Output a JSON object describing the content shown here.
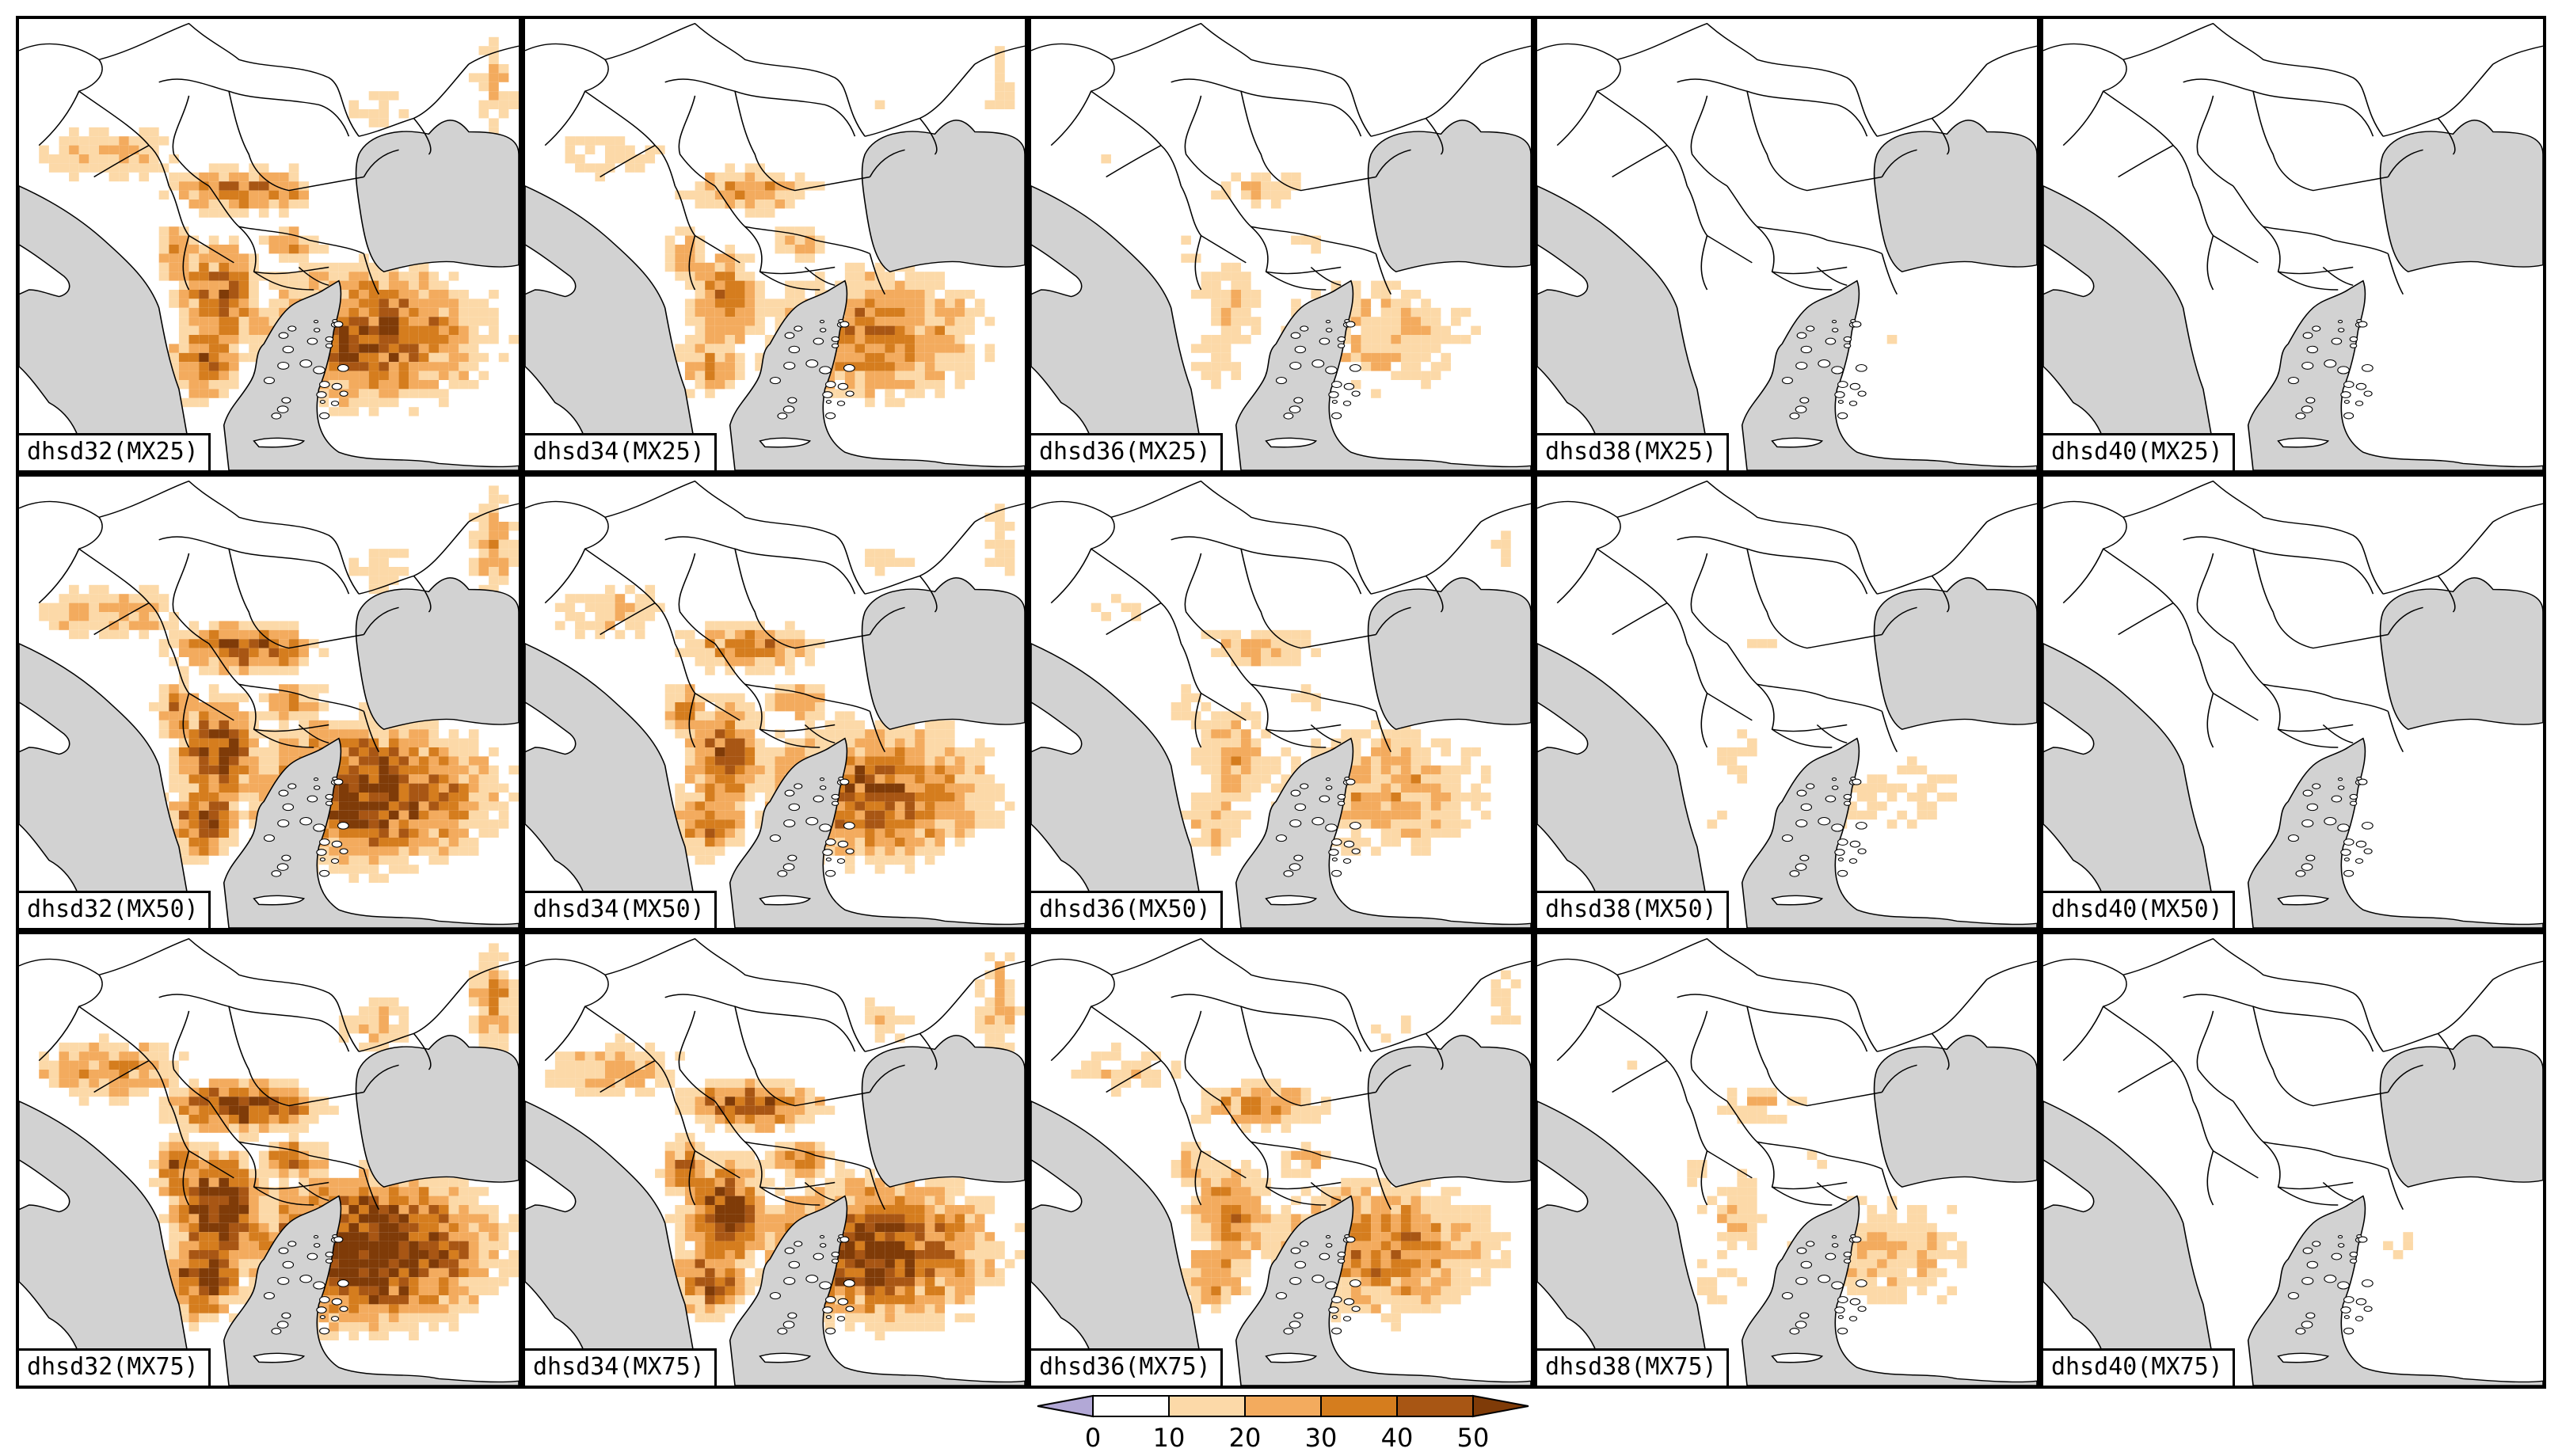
{
  "colors": {
    "sea": "#d2d2d2",
    "land": "#ffffff",
    "border": "#000000",
    "bins": [
      "#b2a8d6",
      "#ffffff",
      "#fcd9a8",
      "#f3ab5e",
      "#d57d1e",
      "#a85614",
      "#7f3b08"
    ]
  },
  "panels": [
    {
      "label": "dhsd32(MX25)",
      "intensity": 0.55
    },
    {
      "label": "dhsd34(MX25)",
      "intensity": 0.38
    },
    {
      "label": "dhsd36(MX25)",
      "intensity": 0.2
    },
    {
      "label": "dhsd38(MX25)",
      "intensity": 0.08
    },
    {
      "label": "dhsd40(MX25)",
      "intensity": 0.02
    },
    {
      "label": "dhsd32(MX50)",
      "intensity": 0.68
    },
    {
      "label": "dhsd34(MX50)",
      "intensity": 0.5
    },
    {
      "label": "dhsd36(MX50)",
      "intensity": 0.28
    },
    {
      "label": "dhsd38(MX50)",
      "intensity": 0.12
    },
    {
      "label": "dhsd40(MX50)",
      "intensity": 0.04
    },
    {
      "label": "dhsd32(MX75)",
      "intensity": 0.85
    },
    {
      "label": "dhsd34(MX75)",
      "intensity": 0.65
    },
    {
      "label": "dhsd36(MX75)",
      "intensity": 0.4
    },
    {
      "label": "dhsd38(MX75)",
      "intensity": 0.2
    },
    {
      "label": "dhsd40(MX75)",
      "intensity": 0.08
    }
  ],
  "legend": {
    "ticks": [
      "0",
      "10",
      "20",
      "30",
      "40",
      "50"
    ]
  }
}
